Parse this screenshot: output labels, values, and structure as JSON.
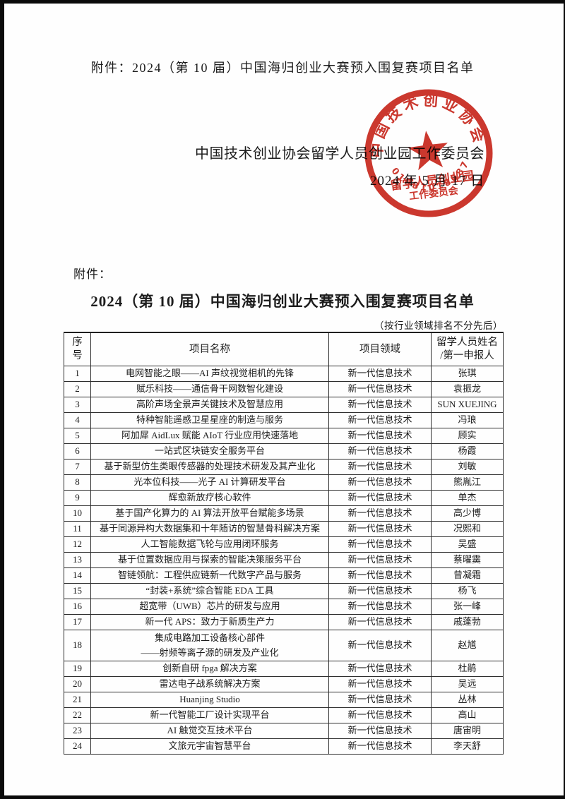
{
  "header": {
    "attachment_line": "附件：2024（第 10 届）中国海归创业大赛预入围复赛项目名单"
  },
  "signature": {
    "organization": "中国技术创业协会留学人员创业园工作委员会",
    "date": "2024 年 5 月 17 日"
  },
  "stamp": {
    "ring_text": "中国技术创业协会",
    "center_line1": "留学人员创业园",
    "center_line2": "工作委员会",
    "serial": "01081018087",
    "color": "#c8281e"
  },
  "body": {
    "annex_label": "附件：",
    "title": "2024（第 10 届）中国海归创业大赛预入围复赛项目名单",
    "note": "（按行业领域排名不分先后）"
  },
  "table": {
    "header": {
      "no_l1": "序",
      "no_l2": "号",
      "project": "项目名称",
      "field": "项目领域",
      "name_l1": "留学人员姓名",
      "name_l2": "/第一申报人"
    },
    "rows": [
      {
        "no": "1",
        "project": "电网智能之眼——AI 声纹视觉相机的先锋",
        "field": "新一代信息技术",
        "name": "张琪"
      },
      {
        "no": "2",
        "project": "赋乐科技——通信骨干网数智化建设",
        "field": "新一代信息技术",
        "name": "袁振龙"
      },
      {
        "no": "3",
        "project": "高阶声场全景声关键技术及智慧应用",
        "field": "新一代信息技术",
        "name": "SUN XUEJING"
      },
      {
        "no": "4",
        "project": "特种智能遥感卫星星座的制造与服务",
        "field": "新一代信息技术",
        "name": "冯琅"
      },
      {
        "no": "5",
        "project": "阿加犀 AidLux 赋能 AIoT 行业应用快速落地",
        "field": "新一代信息技术",
        "name": "顾实"
      },
      {
        "no": "6",
        "project": "一站式区块链安全服务平台",
        "field": "新一代信息技术",
        "name": "杨霞"
      },
      {
        "no": "7",
        "project": "基于新型仿生类眼传感器的处理技术研发及其产业化",
        "field": "新一代信息技术",
        "name": "刘敏"
      },
      {
        "no": "8",
        "project": "光本位科技——光子 AI 计算研发平台",
        "field": "新一代信息技术",
        "name": "熊胤江"
      },
      {
        "no": "9",
        "project": "辉愈新放疗核心软件",
        "field": "新一代信息技术",
        "name": "单杰"
      },
      {
        "no": "10",
        "project": "基于国产化算力的 AI 算法开放平台赋能多场景",
        "field": "新一代信息技术",
        "name": "高少博"
      },
      {
        "no": "11",
        "project": "基于同源异构大数据集和十年随访的智慧骨科解决方案",
        "field": "新一代信息技术",
        "name": "况熙和"
      },
      {
        "no": "12",
        "project": "人工智能数据飞轮与应用闭环服务",
        "field": "新一代信息技术",
        "name": "吴盛"
      },
      {
        "no": "13",
        "project": "基于位置数据应用与探索的智能决策服务平台",
        "field": "新一代信息技术",
        "name": "蔡曜霙"
      },
      {
        "no": "14",
        "project": "智链领航：工程供应链新一代数字产品与服务",
        "field": "新一代信息技术",
        "name": "曾凝霜"
      },
      {
        "no": "15",
        "project": "“封装+系统”综合智能 EDA 工具",
        "field": "新一代信息技术",
        "name": "杨飞"
      },
      {
        "no": "16",
        "project": "超宽带（UWB）芯片的研发与应用",
        "field": "新一代信息技术",
        "name": "张一峰"
      },
      {
        "no": "17",
        "project": "新一代 APS：致力于新质生产力",
        "field": "新一代信息技术",
        "name": "戚蓬勃"
      },
      {
        "no": "18",
        "project": "集成电路加工设备核心部件",
        "project2": "——射频等离子源的研发及产业化",
        "field": "新一代信息技术",
        "name": "赵馗"
      },
      {
        "no": "19",
        "project": "创新自研 fpga 解决方案",
        "field": "新一代信息技术",
        "name": "杜鹃"
      },
      {
        "no": "20",
        "project": "雷达电子战系统解决方案",
        "field": "新一代信息技术",
        "name": "吴远"
      },
      {
        "no": "21",
        "project": "Huanjing Studio",
        "field": "新一代信息技术",
        "name": "丛林"
      },
      {
        "no": "22",
        "project": "新一代智能工厂设计实现平台",
        "field": "新一代信息技术",
        "name": "高山"
      },
      {
        "no": "23",
        "project": "AI 触觉交互技术平台",
        "field": "新一代信息技术",
        "name": "唐宙明"
      },
      {
        "no": "24",
        "project": "文旅元宇宙智慧平台",
        "field": "新一代信息技术",
        "name": "李天舒"
      }
    ]
  }
}
